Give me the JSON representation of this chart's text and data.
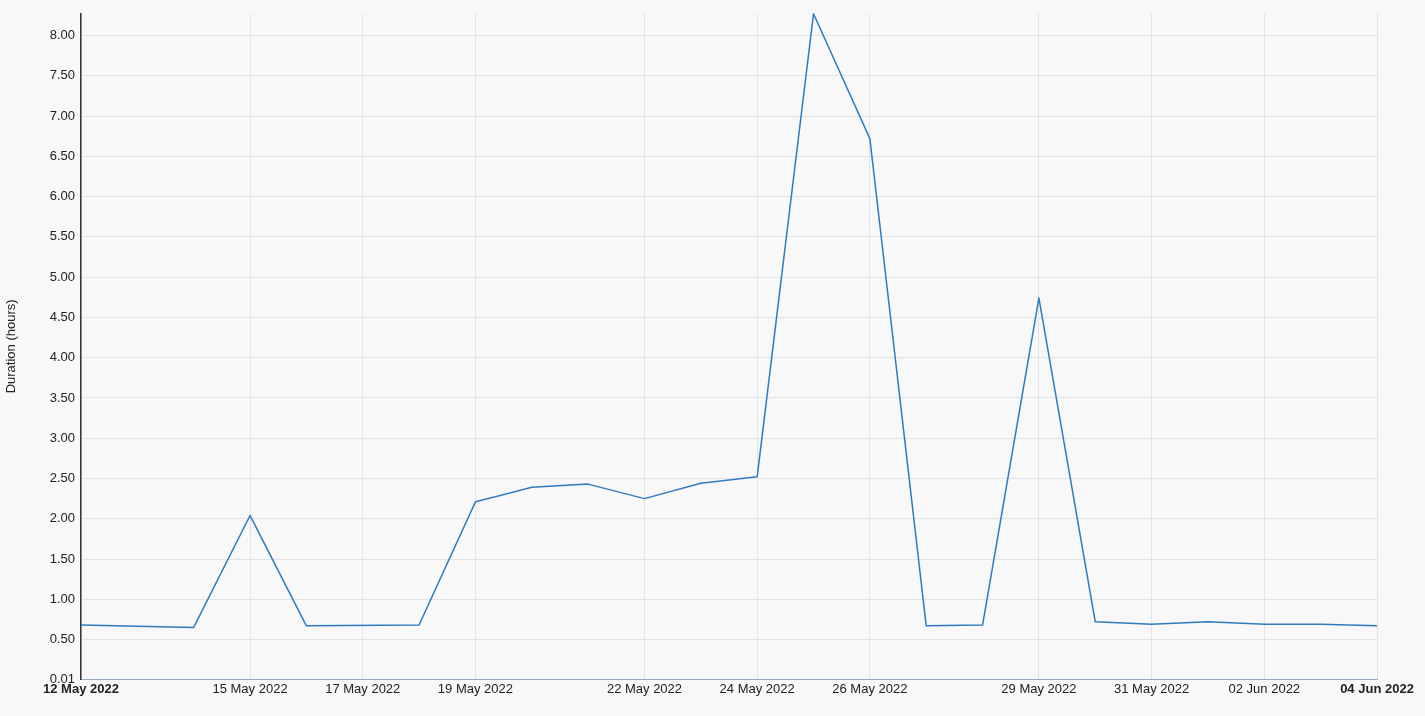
{
  "chart_data": {
    "type": "line",
    "ylabel": "Duration (hours)",
    "x": [
      "2022-05-12",
      "2022-05-14",
      "2022-05-15",
      "2022-05-16",
      "2022-05-18",
      "2022-05-19",
      "2022-05-20",
      "2022-05-21",
      "2022-05-22",
      "2022-05-23",
      "2022-05-24",
      "2022-05-25",
      "2022-05-26",
      "2022-05-27",
      "2022-05-28",
      "2022-05-29",
      "2022-05-30",
      "2022-05-31",
      "2022-06-01",
      "2022-06-02",
      "2022-06-03",
      "2022-06-04"
    ],
    "series": [
      {
        "color": "#2f7bbf",
        "values": [
          0.68,
          0.65,
          2.04,
          0.67,
          0.68,
          2.21,
          2.39,
          2.43,
          2.25,
          2.44,
          2.52,
          8.27,
          6.72,
          0.67,
          0.68,
          4.74,
          0.72,
          0.69,
          0.72,
          0.69,
          0.69,
          0.67
        ]
      }
    ],
    "xlim": [
      "2022-05-12",
      "2022-06-04"
    ],
    "xticks": [
      {
        "value": "2022-05-12",
        "label": "12 May 2022"
      },
      {
        "value": "2022-05-15",
        "label": "15 May 2022"
      },
      {
        "value": "2022-05-17",
        "label": "17 May 2022"
      },
      {
        "value": "2022-05-19",
        "label": "19 May 2022"
      },
      {
        "value": "2022-05-22",
        "label": "22 May 2022"
      },
      {
        "value": "2022-05-24",
        "label": "24 May 2022"
      },
      {
        "value": "2022-05-26",
        "label": "26 May 2022"
      },
      {
        "value": "2022-05-29",
        "label": "29 May 2022"
      },
      {
        "value": "2022-05-31",
        "label": "31 May 2022"
      },
      {
        "value": "2022-06-02",
        "label": "02 Jun 2022"
      },
      {
        "value": "2022-06-04",
        "label": "04 Jun 2022"
      }
    ],
    "ylim": [
      0.01,
      8.27
    ],
    "yticks": [
      {
        "value": 0.01,
        "label": "0.01"
      },
      {
        "value": 0.5,
        "label": "0.50"
      },
      {
        "value": 1,
        "label": "1.00"
      },
      {
        "value": 1.5,
        "label": "1.50"
      },
      {
        "value": 2,
        "label": "2.00"
      },
      {
        "value": 2.5,
        "label": "2.50"
      },
      {
        "value": 3,
        "label": "3.00"
      },
      {
        "value": 3.5,
        "label": "3.50"
      },
      {
        "value": 4,
        "label": "4.00"
      },
      {
        "value": 4.5,
        "label": "4.50"
      },
      {
        "value": 5,
        "label": "5.00"
      },
      {
        "value": 5.5,
        "label": "5.50"
      },
      {
        "value": 6,
        "label": "6.00"
      },
      {
        "value": 6.5,
        "label": "6.50"
      },
      {
        "value": 7,
        "label": "7.00"
      },
      {
        "value": 7.5,
        "label": "7.50"
      },
      {
        "value": 8,
        "label": "8.00"
      }
    ],
    "grid": true,
    "legend": false,
    "marker": "none",
    "line_style": "solid"
  }
}
